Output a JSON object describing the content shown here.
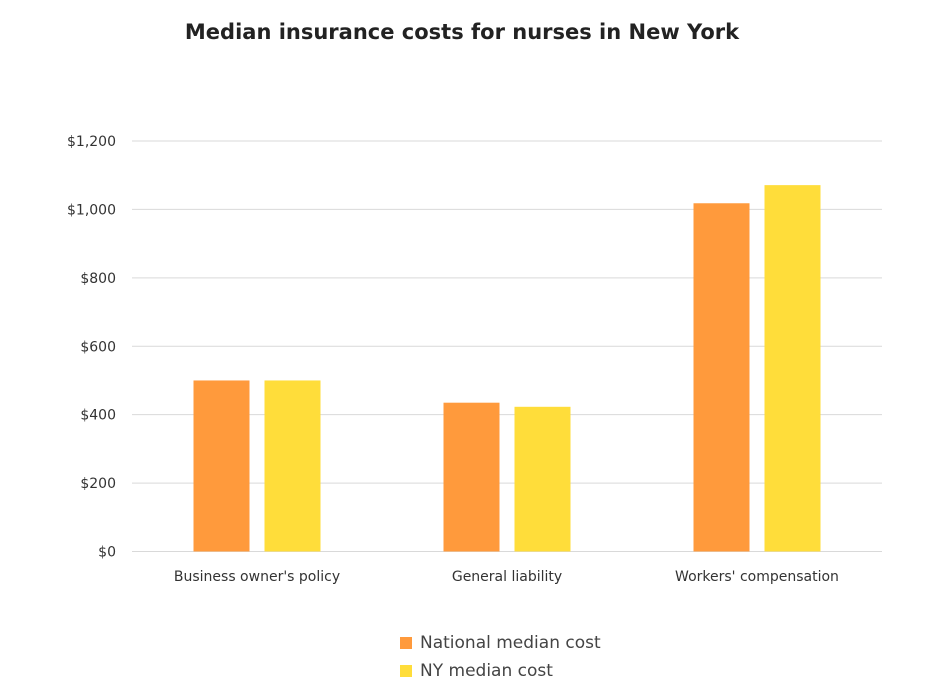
{
  "chart_data": {
    "type": "bar",
    "title": "Median insurance costs for nurses in New York",
    "categories": [
      "Business owner's policy",
      "General liability",
      "Workers' compensation"
    ],
    "series": [
      {
        "name": "National median cost",
        "values": [
          500,
          435,
          1018
        ],
        "color": "#FF9A3C"
      },
      {
        "name": "NY median cost",
        "values": [
          500,
          423,
          1071
        ],
        "color": "#FFDD3A"
      }
    ],
    "yticks": [
      "$0",
      "$200",
      "$400",
      "$600",
      "$800",
      "$1,000",
      "$1,200"
    ],
    "ytick_values": [
      0,
      200,
      400,
      600,
      800,
      1000,
      1200
    ],
    "ylim": [
      0,
      1200
    ],
    "grid": true,
    "legend_position": "bottom",
    "xlabel": "",
    "ylabel": ""
  }
}
